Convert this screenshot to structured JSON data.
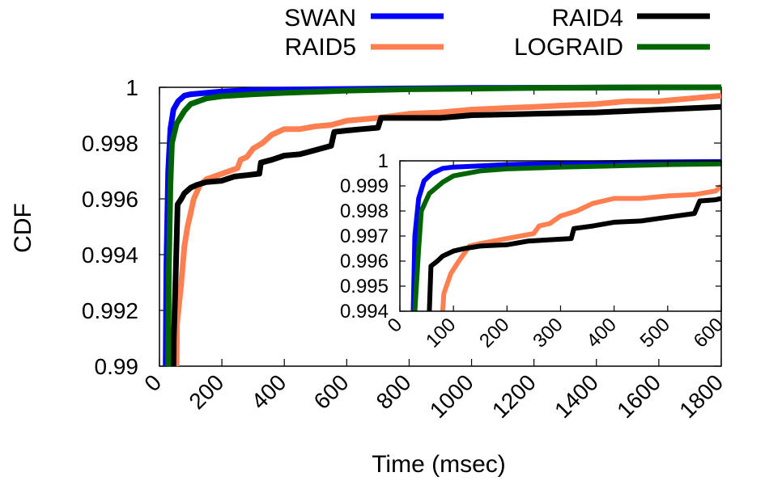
{
  "chart_data": [
    {
      "type": "line",
      "panel": "main",
      "xlabel": "Time (msec)",
      "ylabel": "CDF",
      "xlim": [
        0,
        1800
      ],
      "ylim": [
        0.99,
        1
      ],
      "x_ticks": [
        "0",
        "200",
        "400",
        "600",
        "800",
        "1000",
        "1200",
        "1400",
        "1600",
        "1800"
      ],
      "y_ticks": [
        "0.99",
        "0.992",
        "0.994",
        "0.996",
        "0.998",
        "1"
      ],
      "grid": false,
      "legend": "top, above plot, two columns",
      "series": [
        {
          "name": "SWAN",
          "color": "#0000ff",
          "points": [
            [
              20,
              0.99
            ],
            [
              22,
              0.9935
            ],
            [
              28,
              0.997
            ],
            [
              35,
              0.9985
            ],
            [
              45,
              0.9992
            ],
            [
              60,
              0.9995
            ],
            [
              80,
              0.9997
            ],
            [
              100,
              0.99975
            ],
            [
              150,
              0.9998
            ],
            [
              200,
              0.99985
            ],
            [
              300,
              0.9999
            ],
            [
              500,
              0.99993
            ],
            [
              800,
              0.99996
            ],
            [
              1000,
              0.99998
            ],
            [
              1800,
              1.0
            ]
          ]
        },
        {
          "name": "RAID5",
          "color": "#ff7f50",
          "points": [
            [
              55,
              0.99
            ],
            [
              56,
              0.9915
            ],
            [
              70,
              0.993
            ],
            [
              80,
              0.9943
            ],
            [
              90,
              0.995
            ],
            [
              100,
              0.9955
            ],
            [
              110,
              0.996
            ],
            [
              130,
              0.9965
            ],
            [
              150,
              0.9967
            ],
            [
              200,
              0.9969
            ],
            [
              250,
              0.9971
            ],
            [
              260,
              0.9974
            ],
            [
              280,
              0.9975
            ],
            [
              300,
              0.9978
            ],
            [
              330,
              0.998
            ],
            [
              360,
              0.9983
            ],
            [
              400,
              0.9985
            ],
            [
              450,
              0.9985
            ],
            [
              500,
              0.9986
            ],
            [
              550,
              0.99865
            ],
            [
              600,
              0.9988
            ],
            [
              700,
              0.9989
            ],
            [
              800,
              0.99905
            ],
            [
              900,
              0.9991
            ],
            [
              1000,
              0.9992
            ],
            [
              1100,
              0.99925
            ],
            [
              1200,
              0.9993
            ],
            [
              1300,
              0.99935
            ],
            [
              1400,
              0.9994
            ],
            [
              1500,
              0.9995
            ],
            [
              1600,
              0.9995
            ],
            [
              1700,
              0.9996
            ],
            [
              1800,
              0.9997
            ]
          ]
        },
        {
          "name": "RAID4",
          "color": "#000000",
          "points": [
            [
              45,
              0.99
            ],
            [
              46,
              0.991
            ],
            [
              50,
              0.9925
            ],
            [
              55,
              0.9945
            ],
            [
              58,
              0.9958
            ],
            [
              70,
              0.996
            ],
            [
              80,
              0.9962
            ],
            [
              100,
              0.9964
            ],
            [
              120,
              0.9965
            ],
            [
              150,
              0.9966
            ],
            [
              200,
              0.99665
            ],
            [
              240,
              0.9968
            ],
            [
              280,
              0.99685
            ],
            [
              320,
              0.9969
            ],
            [
              325,
              0.9973
            ],
            [
              360,
              0.9974
            ],
            [
              400,
              0.99755
            ],
            [
              450,
              0.9976
            ],
            [
              500,
              0.99775
            ],
            [
              550,
              0.9979
            ],
            [
              560,
              0.9984
            ],
            [
              600,
              0.99845
            ],
            [
              650,
              0.9985
            ],
            [
              700,
              0.99855
            ],
            [
              710,
              0.9989
            ],
            [
              800,
              0.9989
            ],
            [
              900,
              0.9989
            ],
            [
              1000,
              0.999
            ],
            [
              1200,
              0.99905
            ],
            [
              1400,
              0.9991
            ],
            [
              1600,
              0.9992
            ],
            [
              1800,
              0.9993
            ]
          ]
        },
        {
          "name": "LOGRAID",
          "color": "#006400",
          "points": [
            [
              28,
              0.99
            ],
            [
              30,
              0.9935
            ],
            [
              35,
              0.9965
            ],
            [
              40,
              0.998
            ],
            [
              55,
              0.9987
            ],
            [
              80,
              0.99915
            ],
            [
              100,
              0.9994
            ],
            [
              150,
              0.9996
            ],
            [
              200,
              0.99968
            ],
            [
              300,
              0.99975
            ],
            [
              400,
              0.9998
            ],
            [
              600,
              0.99988
            ],
            [
              800,
              0.99993
            ],
            [
              1000,
              0.99995
            ],
            [
              1200,
              0.99998
            ],
            [
              1600,
              1.0
            ],
            [
              1800,
              1.0
            ]
          ]
        }
      ]
    },
    {
      "type": "line",
      "panel": "inset",
      "xlim": [
        0,
        600
      ],
      "ylim": [
        0.994,
        1
      ],
      "x_ticks": [
        "0",
        "100",
        "200",
        "300",
        "400",
        "500",
        "600"
      ],
      "y_ticks": [
        "0.994",
        "0.995",
        "0.996",
        "0.997",
        "0.998",
        "0.999",
        "1"
      ],
      "series": [
        {
          "name": "SWAN",
          "color": "#0000ff",
          "points": [
            [
              25,
              0.994
            ],
            [
              28,
              0.997
            ],
            [
              35,
              0.9985
            ],
            [
              45,
              0.9992
            ],
            [
              60,
              0.9995
            ],
            [
              80,
              0.9997
            ],
            [
              100,
              0.99975
            ],
            [
              150,
              0.9998
            ],
            [
              200,
              0.99985
            ],
            [
              300,
              0.9999
            ],
            [
              450,
              0.99995
            ],
            [
              600,
              0.99997
            ]
          ]
        },
        {
          "name": "RAID5",
          "color": "#ff7f50",
          "points": [
            [
              80,
              0.994
            ],
            [
              82,
              0.9947
            ],
            [
              95,
              0.9955
            ],
            [
              110,
              0.996
            ],
            [
              130,
              0.9966
            ],
            [
              150,
              0.9967
            ],
            [
              200,
              0.9969
            ],
            [
              250,
              0.9971
            ],
            [
              260,
              0.9974
            ],
            [
              280,
              0.9975
            ],
            [
              300,
              0.9978
            ],
            [
              330,
              0.998
            ],
            [
              360,
              0.9983
            ],
            [
              400,
              0.9985
            ],
            [
              450,
              0.9985
            ],
            [
              500,
              0.9986
            ],
            [
              550,
              0.99865
            ],
            [
              590,
              0.9988
            ],
            [
              600,
              0.999
            ]
          ]
        },
        {
          "name": "RAID4",
          "color": "#000000",
          "points": [
            [
              55,
              0.994
            ],
            [
              58,
              0.9958
            ],
            [
              70,
              0.996
            ],
            [
              80,
              0.9962
            ],
            [
              100,
              0.9964
            ],
            [
              120,
              0.9965
            ],
            [
              150,
              0.9966
            ],
            [
              200,
              0.99665
            ],
            [
              240,
              0.9968
            ],
            [
              280,
              0.99685
            ],
            [
              320,
              0.9969
            ],
            [
              325,
              0.9973
            ],
            [
              360,
              0.9974
            ],
            [
              400,
              0.99755
            ],
            [
              450,
              0.9976
            ],
            [
              500,
              0.99775
            ],
            [
              550,
              0.9979
            ],
            [
              560,
              0.9984
            ],
            [
              590,
              0.99845
            ],
            [
              600,
              0.9985
            ]
          ]
        },
        {
          "name": "LOGRAID",
          "color": "#006400",
          "points": [
            [
              28,
              0.994
            ],
            [
              35,
              0.9965
            ],
            [
              40,
              0.998
            ],
            [
              55,
              0.9987
            ],
            [
              80,
              0.99915
            ],
            [
              100,
              0.9994
            ],
            [
              150,
              0.9996
            ],
            [
              200,
              0.99968
            ],
            [
              300,
              0.99975
            ],
            [
              400,
              0.9998
            ],
            [
              500,
              0.99985
            ],
            [
              600,
              0.99988
            ]
          ]
        }
      ]
    }
  ]
}
